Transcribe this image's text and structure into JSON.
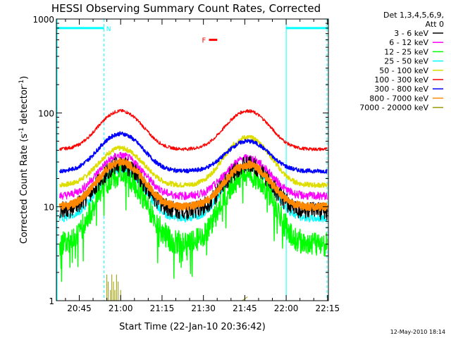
{
  "chart_data": {
    "type": "line",
    "title": "HESSI Observing Summary Count Rates, Corrected",
    "xlabel": "Start Time (22-Jan-10 20:36:42)",
    "ylabel_main": "Corrected Count Rate (s",
    "ylabel_sup1": "-1",
    "ylabel_mid": " detector",
    "ylabel_sup2": "-1",
    "ylabel_end": ")",
    "yscale": "log",
    "ylim": [
      1,
      1000
    ],
    "xlim_minutes": [
      36.7,
      135.3
    ],
    "x_ticks": [
      {
        "t": 45,
        "label": "20:45"
      },
      {
        "t": 60,
        "label": "21:00"
      },
      {
        "t": 75,
        "label": "21:15"
      },
      {
        "t": 90,
        "label": "21:30"
      },
      {
        "t": 105,
        "label": "21:45"
      },
      {
        "t": 120,
        "label": "22:00"
      },
      {
        "t": 135,
        "label": "22:15"
      }
    ],
    "y_major_ticks": [
      {
        "v": 1,
        "label": "1"
      },
      {
        "v": 10,
        "label": "10"
      },
      {
        "v": 100,
        "label": "100"
      },
      {
        "v": 1000,
        "label": "1000"
      }
    ],
    "legend_header_1": "Det 1,3,4,5,6,9,",
    "legend_header_2": "Att 0",
    "legend_placement": "top-right outside plot",
    "series": [
      {
        "name": "3 - 6 keV",
        "color": "#000000",
        "base": 9,
        "peak1": 28,
        "peak2": 28
      },
      {
        "name": "6 - 12 keV",
        "color": "#ff00ff",
        "base": 13,
        "peak1": 35,
        "peak2": 33
      },
      {
        "name": "12 - 25 keV",
        "color": "#00ff00",
        "base": 4,
        "peak1": 22,
        "peak2": 22
      },
      {
        "name": "25 - 50 keV",
        "color": "#00ffff",
        "base": 7.5,
        "peak1": 25,
        "peak2": 27
      },
      {
        "name": "50 - 100 keV",
        "color": "#dddd00",
        "base": 17,
        "peak1": 42,
        "peak2": 55
      },
      {
        "name": "100 - 300 keV",
        "color": "#ff0000",
        "base": 41,
        "peak1": 105,
        "peak2": 105
      },
      {
        "name": "300 - 800 keV",
        "color": "#0000ff",
        "base": 24,
        "peak1": 60,
        "peak2": 50
      },
      {
        "name": "800 - 7000 keV",
        "color": "#ff8800",
        "base": 10,
        "peak1": 30,
        "peak2": 28
      },
      {
        "name": "7000 - 20000 keV",
        "color": "#999900",
        "base": 1,
        "peak1": 1.9,
        "peak2": 1.1
      }
    ],
    "peak_times_minutes": [
      60,
      106
    ],
    "annotations": {
      "night_label": "N",
      "flare_label": "F",
      "saa_start_minutes": 36.7,
      "night_end_minutes": 54,
      "night_start_minutes": 120,
      "flare_start_minutes": 92,
      "flare_end_minutes": 94,
      "attenuator_level": 800,
      "flare_level": 600
    }
  },
  "footer": {
    "timestamp": "12-May-2010 18:14"
  },
  "colors": {
    "background": "#ffffff",
    "axes": "#000000",
    "night_bar": "#00ffff",
    "flare_bar": "#ff0000"
  }
}
